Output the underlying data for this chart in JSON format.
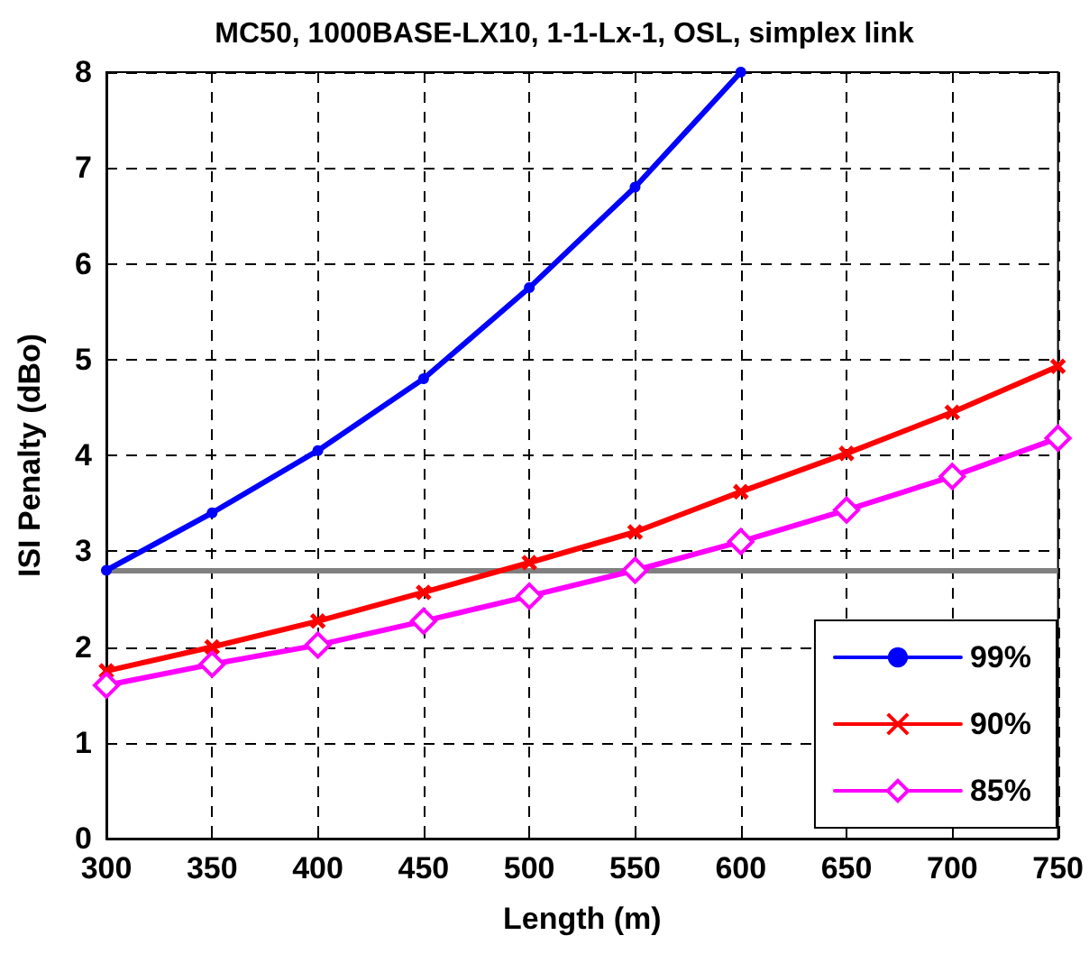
{
  "chart_data": {
    "type": "line",
    "title": "MC50, 1000BASE-LX10, 1-1-Lx-1, OSL, simplex link",
    "xlabel": "Length (m)",
    "ylabel": "ISI Penalty (dBo)",
    "x": [
      300,
      350,
      400,
      450,
      500,
      550,
      600,
      650,
      700,
      750
    ],
    "xlim": [
      300,
      750
    ],
    "xticks": [
      300,
      350,
      400,
      450,
      500,
      550,
      600,
      650,
      700,
      750
    ],
    "ylim": [
      0,
      8
    ],
    "yticks": [
      0,
      1,
      2,
      3,
      4,
      5,
      6,
      7,
      8
    ],
    "grid": true,
    "legend": "bottom right",
    "line_style": "solid",
    "ref_lines": [
      {
        "axis": "y",
        "value": 2.8,
        "color": "#808080"
      }
    ],
    "series": [
      {
        "name": "99%",
        "color": "#0000ff",
        "marker": "circle",
        "values": [
          2.8,
          3.4,
          4.05,
          4.8,
          5.75,
          6.8,
          8.0,
          null,
          null,
          null
        ]
      },
      {
        "name": "90%",
        "color": "#ff0000",
        "marker": "cross",
        "values": [
          1.75,
          2.0,
          2.27,
          2.57,
          2.88,
          3.2,
          3.62,
          4.02,
          4.45,
          4.93
        ]
      },
      {
        "name": "85%",
        "color": "#ff00ff",
        "marker": "diamond",
        "values": [
          1.6,
          1.82,
          2.02,
          2.27,
          2.53,
          2.8,
          3.1,
          3.43,
          3.78,
          4.18
        ]
      }
    ]
  }
}
